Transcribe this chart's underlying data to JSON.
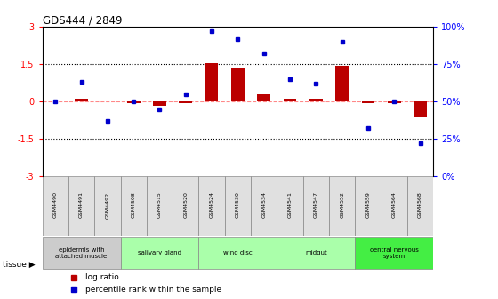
{
  "title": "GDS444 / 2849",
  "samples": [
    "GSM4490",
    "GSM4491",
    "GSM4492",
    "GSM4508",
    "GSM4515",
    "GSM4520",
    "GSM4524",
    "GSM4530",
    "GSM4534",
    "GSM4541",
    "GSM4547",
    "GSM4552",
    "GSM4559",
    "GSM4564",
    "GSM4568"
  ],
  "log_ratio": [
    0.05,
    0.12,
    0.0,
    -0.07,
    -0.18,
    -0.05,
    1.55,
    1.35,
    0.3,
    0.12,
    0.1,
    1.45,
    -0.07,
    -0.07,
    -0.65
  ],
  "percentile": [
    50,
    63,
    37,
    50,
    45,
    55,
    97,
    92,
    82,
    65,
    62,
    90,
    32,
    50,
    22
  ],
  "tissues": [
    {
      "label": "epidermis with\nattached muscle",
      "start": 0,
      "end": 3,
      "color": "#cccccc"
    },
    {
      "label": "salivary gland",
      "start": 3,
      "end": 6,
      "color": "#aaffaa"
    },
    {
      "label": "wing disc",
      "start": 6,
      "end": 9,
      "color": "#aaffaa"
    },
    {
      "label": "midgut",
      "start": 9,
      "end": 12,
      "color": "#aaffaa"
    },
    {
      "label": "central nervous\nsystem",
      "start": 12,
      "end": 15,
      "color": "#44ee44"
    }
  ],
  "ylim_left": [
    -3,
    3
  ],
  "ylim_right": [
    0,
    100
  ],
  "yticks_left": [
    -3,
    -1.5,
    0,
    1.5,
    3
  ],
  "yticks_right": [
    0,
    25,
    50,
    75,
    100
  ],
  "ytick_labels_right": [
    "0%",
    "25%",
    "50%",
    "75%",
    "100%"
  ],
  "hlines": [
    1.5,
    -1.5
  ],
  "bar_color": "#bb0000",
  "dot_color": "#0000cc",
  "zero_line_color": "#ff8888",
  "background_color": "#ffffff"
}
